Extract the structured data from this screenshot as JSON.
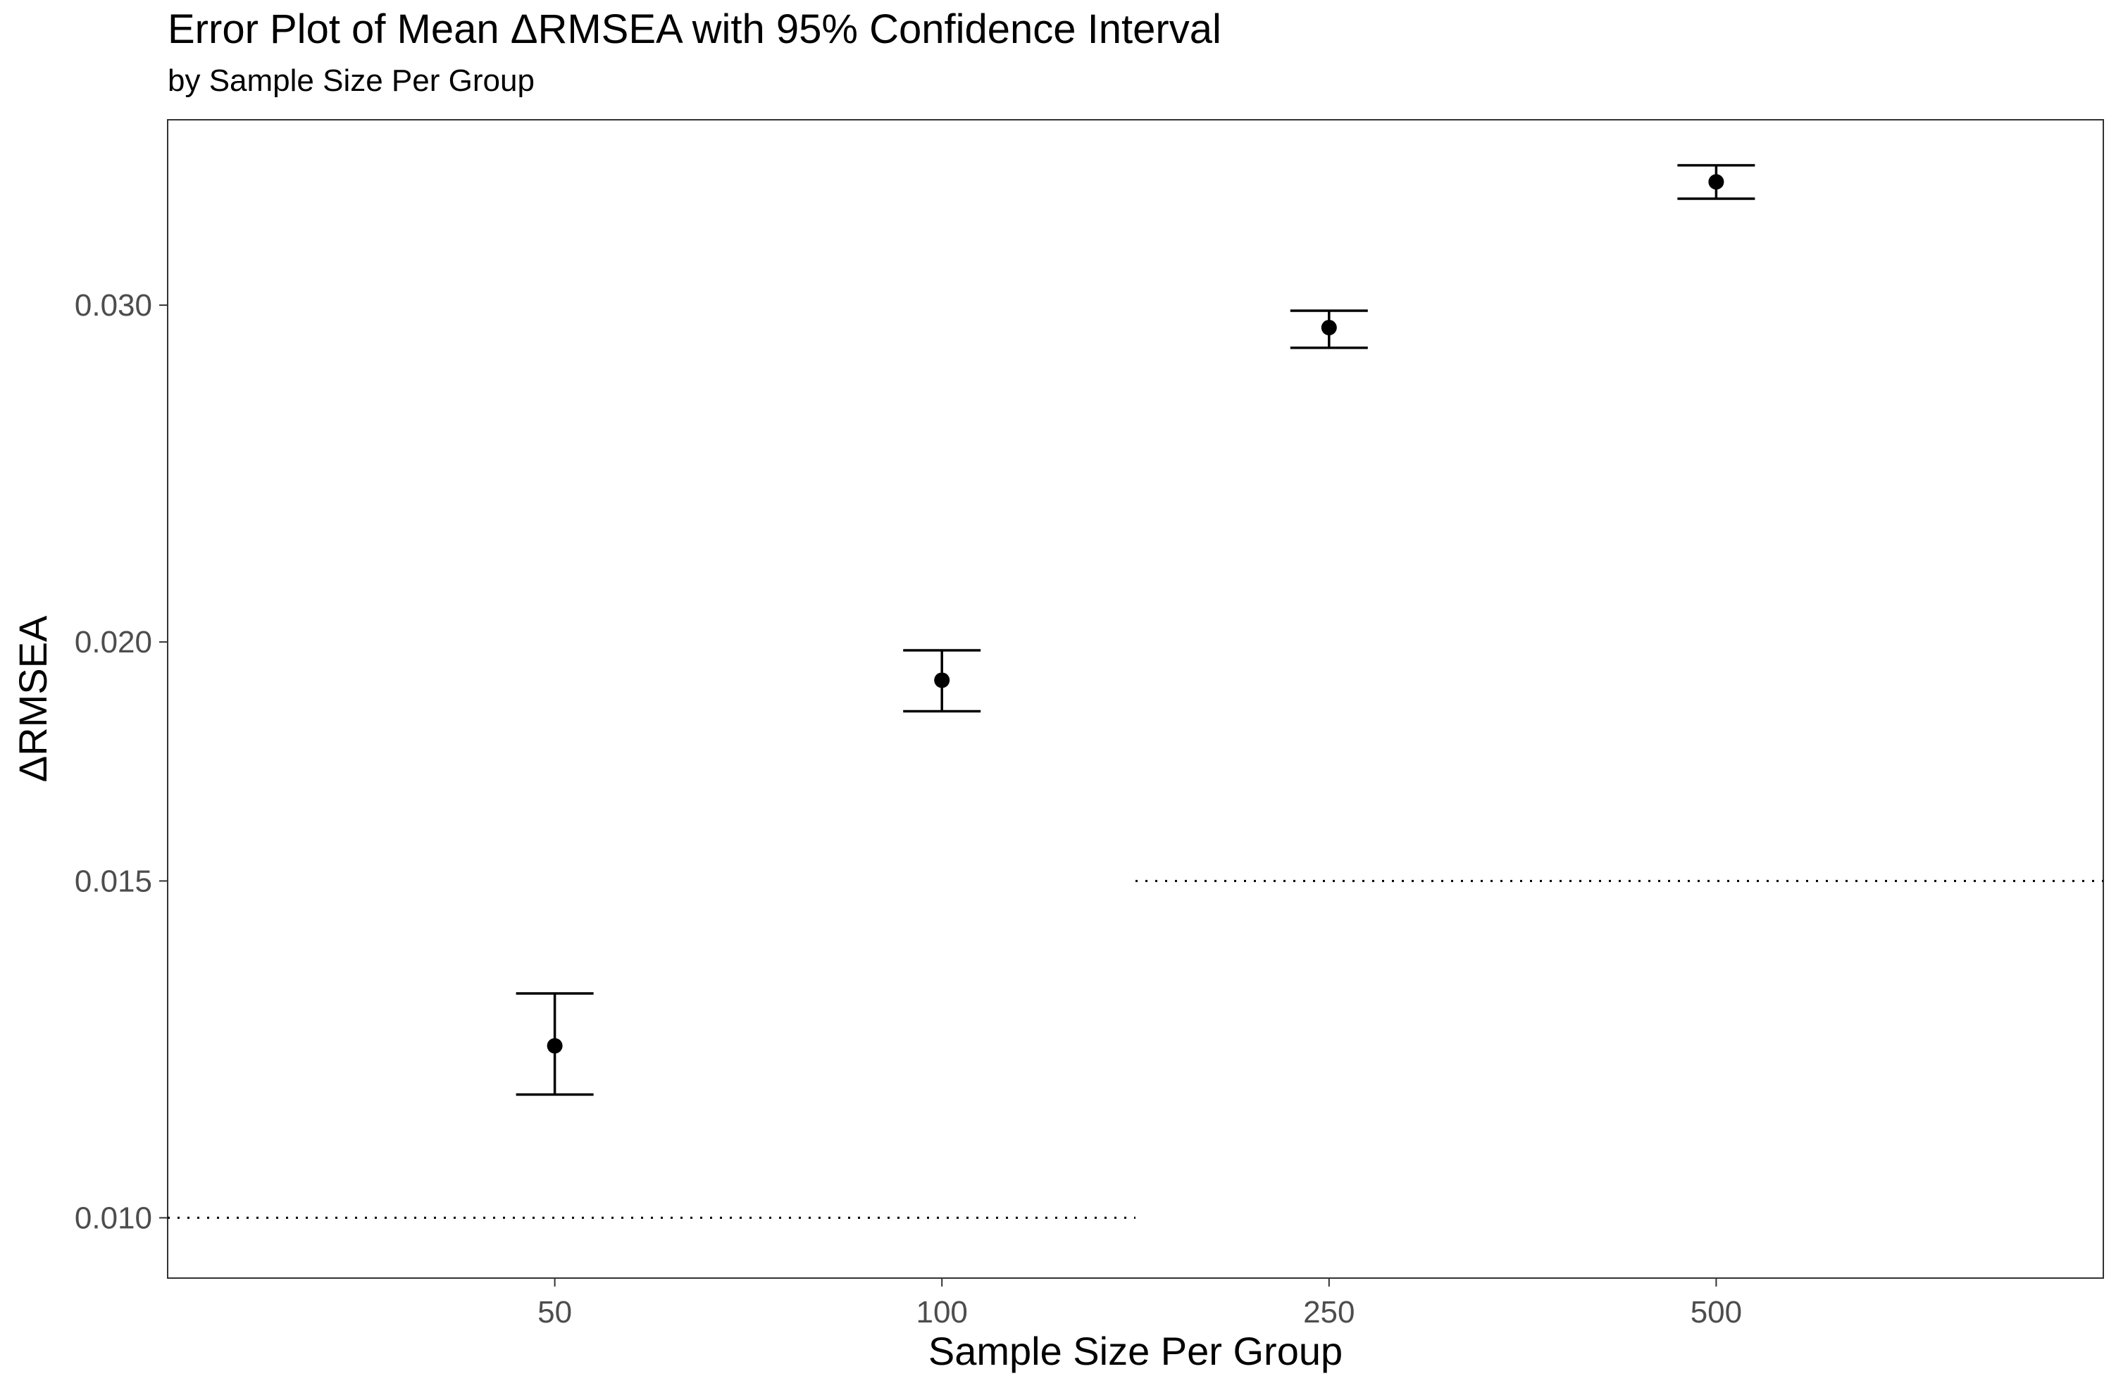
{
  "title": "Error Plot of Mean ΔRMSEA with 95% Confidence Interval",
  "subtitle": "by Sample Size Per Group",
  "chart_data": {
    "type": "scatter",
    "title": "Error Plot of Mean ΔRMSEA with 95% Confidence Interval",
    "subtitle": "by Sample Size Per Group",
    "xlabel": "Sample Size Per Group",
    "ylabel": "ΔRMSEA",
    "categories": [
      "50",
      "100",
      "250",
      "500"
    ],
    "y_scale": "log10",
    "ylim": [
      0.0093,
      0.0375
    ],
    "yticks": [
      0.01,
      0.015,
      0.02,
      0.03
    ],
    "ytick_labels": [
      "0.010",
      "0.015",
      "0.020",
      "0.030"
    ],
    "grid": false,
    "points": [
      {
        "x": "50",
        "mean": 0.0123,
        "ci_low": 0.0116,
        "ci_high": 0.0131
      },
      {
        "x": "100",
        "mean": 0.0191,
        "ci_low": 0.0184,
        "ci_high": 0.0198
      },
      {
        "x": "250",
        "mean": 0.0292,
        "ci_low": 0.0285,
        "ci_high": 0.0298
      },
      {
        "x": "500",
        "mean": 0.0348,
        "ci_low": 0.0341,
        "ci_high": 0.0355
      }
    ],
    "reference_lines": [
      {
        "y": 0.01,
        "x_from": "left edge",
        "x_to": "between 100 and 250",
        "style": "dotted"
      },
      {
        "y": 0.015,
        "x_from": "between 100 and 250",
        "x_to": "right edge",
        "style": "dotted"
      }
    ]
  }
}
